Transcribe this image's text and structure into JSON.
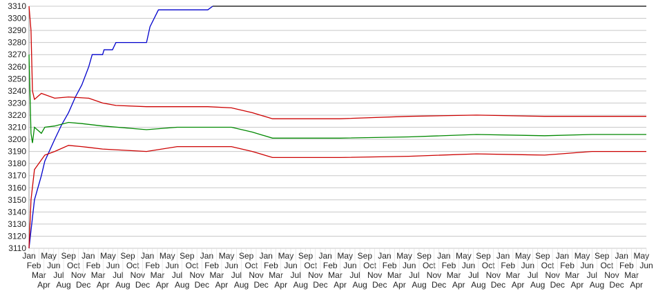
{
  "chart_data": {
    "type": "line",
    "title": "",
    "xlabel": "",
    "ylabel": "",
    "ylim": [
      3110,
      3310
    ],
    "yticks": [
      3110,
      3120,
      3130,
      3140,
      3150,
      3160,
      3170,
      3180,
      3190,
      3200,
      3210,
      3220,
      3230,
      3240,
      3250,
      3260,
      3270,
      3280,
      3290,
      3300,
      3310
    ],
    "grid": true,
    "legend": "none",
    "x_tick_labels_cycle": [
      "Jan",
      "Feb",
      "Mar",
      "Apr",
      "May",
      "Jun",
      "Jul",
      "Aug",
      "Sep",
      "Oct",
      "Nov",
      "Dec"
    ],
    "x_tick_count": 126,
    "series": [
      {
        "color": "#0000cc",
        "points": [
          [
            0,
            3110
          ],
          [
            1.1,
            3150
          ],
          [
            2.5,
            3170
          ],
          [
            3.2,
            3182
          ],
          [
            5.2,
            3200
          ],
          [
            6.6,
            3212
          ],
          [
            8,
            3222
          ],
          [
            9.4,
            3235
          ],
          [
            10.7,
            3245
          ],
          [
            12.1,
            3260
          ],
          [
            12.8,
            3270
          ],
          [
            14.9,
            3270
          ],
          [
            15.2,
            3274
          ],
          [
            16.9,
            3274
          ],
          [
            17.6,
            3280
          ],
          [
            23.8,
            3280
          ],
          [
            24.5,
            3293
          ],
          [
            26.2,
            3307
          ],
          [
            36.2,
            3307
          ],
          [
            37.2,
            3310
          ]
        ]
      },
      {
        "color": "#000000",
        "points": [
          [
            37.2,
            3310
          ],
          [
            125,
            3310
          ]
        ]
      },
      {
        "color": "#cc0000",
        "points": [
          [
            0,
            3310
          ],
          [
            0.4,
            3290
          ],
          [
            0.7,
            3240
          ],
          [
            1.1,
            3233
          ],
          [
            2.5,
            3238
          ],
          [
            5.2,
            3234
          ],
          [
            8,
            3235
          ],
          [
            12.1,
            3234
          ],
          [
            14.9,
            3230
          ],
          [
            17.6,
            3228
          ],
          [
            23.8,
            3227
          ],
          [
            36.2,
            3227
          ],
          [
            41,
            3226
          ],
          [
            45.2,
            3222
          ],
          [
            49.3,
            3217
          ],
          [
            63,
            3217
          ],
          [
            76.9,
            3219
          ],
          [
            90.6,
            3220
          ],
          [
            104.4,
            3219
          ],
          [
            114,
            3219
          ],
          [
            125,
            3219
          ]
        ]
      },
      {
        "color": "#008800",
        "points": [
          [
            0,
            3270
          ],
          [
            0.4,
            3205
          ],
          [
            0.7,
            3197
          ],
          [
            1.1,
            3210
          ],
          [
            2.5,
            3205
          ],
          [
            3.2,
            3210
          ],
          [
            5.2,
            3211
          ],
          [
            8,
            3214
          ],
          [
            10.7,
            3213
          ],
          [
            14.9,
            3211
          ],
          [
            23.8,
            3208
          ],
          [
            30,
            3210
          ],
          [
            41,
            3210
          ],
          [
            45.2,
            3206
          ],
          [
            49.3,
            3201
          ],
          [
            63,
            3201
          ],
          [
            76.9,
            3202
          ],
          [
            90.6,
            3204
          ],
          [
            104.4,
            3203
          ],
          [
            114,
            3204
          ],
          [
            125,
            3204
          ]
        ]
      },
      {
        "color": "#cc0000",
        "points": [
          [
            0,
            3110
          ],
          [
            0.4,
            3150
          ],
          [
            1.1,
            3175
          ],
          [
            2.5,
            3183
          ],
          [
            3.2,
            3187
          ],
          [
            5.2,
            3190
          ],
          [
            8,
            3195
          ],
          [
            10.7,
            3194
          ],
          [
            14.9,
            3192
          ],
          [
            23.8,
            3190
          ],
          [
            30,
            3194
          ],
          [
            41,
            3194
          ],
          [
            45.2,
            3190
          ],
          [
            49.3,
            3185
          ],
          [
            63,
            3185
          ],
          [
            76.9,
            3186
          ],
          [
            90.6,
            3188
          ],
          [
            104.4,
            3187
          ],
          [
            114,
            3190
          ],
          [
            125,
            3190
          ]
        ]
      }
    ]
  }
}
